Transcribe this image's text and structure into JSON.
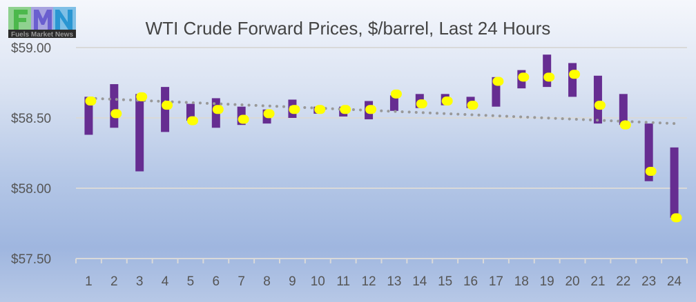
{
  "logo": {
    "letters": "FMN",
    "caption": "Fuels Market News"
  },
  "chart_data": {
    "type": "candlestick-range",
    "title": "WTI Crude Forward Prices, $/barrel, Last 24 Hours",
    "xlabel": "",
    "ylabel": "",
    "categories": [
      "1",
      "2",
      "3",
      "4",
      "5",
      "6",
      "7",
      "8",
      "9",
      "10",
      "11",
      "12",
      "13",
      "14",
      "15",
      "16",
      "17",
      "18",
      "19",
      "20",
      "21",
      "22",
      "23",
      "24"
    ],
    "series": [
      {
        "name": "High",
        "values": [
          58.65,
          58.74,
          58.67,
          58.72,
          58.6,
          58.64,
          58.58,
          58.56,
          58.63,
          58.58,
          58.58,
          58.62,
          58.66,
          58.67,
          58.67,
          58.65,
          58.79,
          58.84,
          58.95,
          58.89,
          58.8,
          58.67,
          58.46,
          58.29
        ]
      },
      {
        "name": "Low",
        "values": [
          58.38,
          58.43,
          58.12,
          58.4,
          58.48,
          58.43,
          58.45,
          58.46,
          58.5,
          58.53,
          58.51,
          58.49,
          58.55,
          58.57,
          58.59,
          58.57,
          58.58,
          58.71,
          58.72,
          58.65,
          58.46,
          58.45,
          58.05,
          57.79
        ]
      },
      {
        "name": "Last",
        "values": [
          58.62,
          58.53,
          58.65,
          58.59,
          58.48,
          58.56,
          58.49,
          58.53,
          58.56,
          58.56,
          58.56,
          58.56,
          58.67,
          58.6,
          58.62,
          58.59,
          58.76,
          58.79,
          58.79,
          58.81,
          58.59,
          58.45,
          58.12,
          57.79
        ]
      }
    ],
    "trendline": {
      "type": "linear",
      "start": 58.64,
      "end": 58.46
    },
    "yticks": [
      "$57.50",
      "$58.00",
      "$58.50",
      "$59.00"
    ],
    "ytick_values": [
      57.5,
      58.0,
      58.5,
      59.0
    ],
    "ylim": [
      57.5,
      59.0
    ],
    "grid": true,
    "colors": {
      "range": "#662d91",
      "last": "#ffff00",
      "trend": "#999999",
      "grid": "#d9d9d9"
    }
  }
}
